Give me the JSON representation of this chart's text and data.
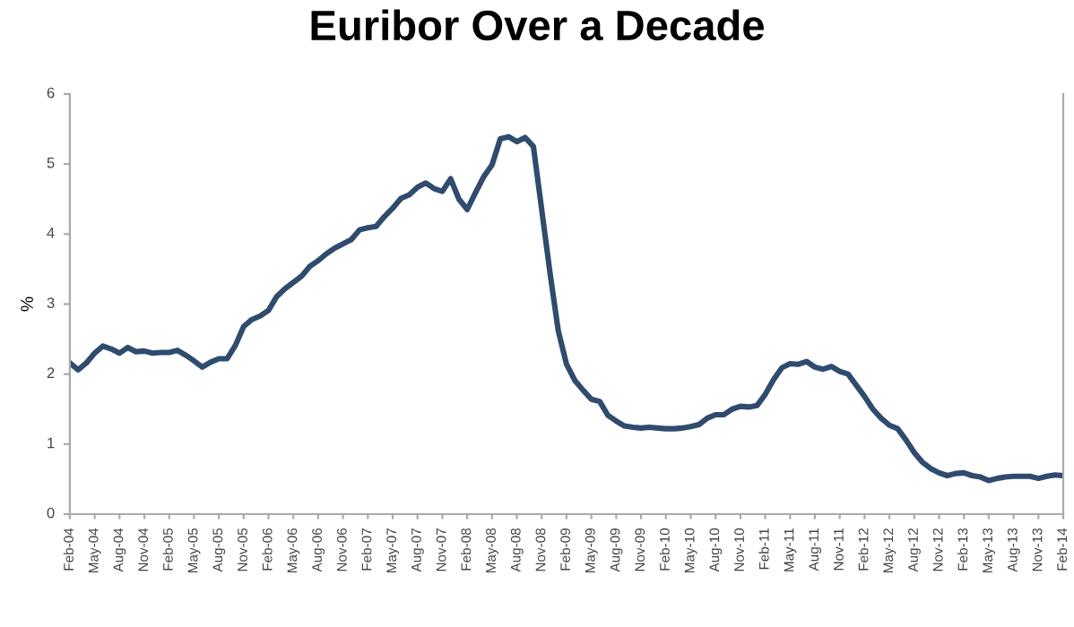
{
  "chart_data": {
    "type": "line",
    "title": "Euribor Over a Decade",
    "ylabel": "%",
    "categories": [
      "Feb-04",
      null,
      null,
      "May-04",
      null,
      null,
      "Aug-04",
      null,
      null,
      "Nov-04",
      null,
      null,
      "Feb-05",
      null,
      null,
      "May-05",
      null,
      null,
      "Aug-05",
      null,
      null,
      "Nov-05",
      null,
      null,
      "Feb-06",
      null,
      null,
      "May-06",
      null,
      null,
      "Aug-06",
      null,
      null,
      "Nov-06",
      null,
      null,
      "Feb-07",
      null,
      null,
      "May-07",
      null,
      null,
      "Aug-07",
      null,
      null,
      "Nov-07",
      null,
      null,
      "Feb-08",
      null,
      null,
      "May-08",
      null,
      null,
      "Aug-08",
      null,
      null,
      "Nov-08",
      null,
      null,
      "Feb-09",
      null,
      null,
      "May-09",
      null,
      null,
      "Aug-09",
      null,
      null,
      "Nov-09",
      null,
      null,
      "Feb-10",
      null,
      null,
      "May-10",
      null,
      null,
      "Aug-10",
      null,
      null,
      "Nov-10",
      null,
      null,
      "Feb-11",
      null,
      null,
      "May-11",
      null,
      null,
      "Aug-11",
      null,
      null,
      "Nov-11",
      null,
      null,
      "Feb-12",
      null,
      null,
      "May-12",
      null,
      null,
      "Aug-12",
      null,
      null,
      "Nov-12",
      null,
      null,
      "Feb-13",
      null,
      null,
      "May-13",
      null,
      null,
      "Aug-13",
      null,
      null,
      "Nov-13",
      null,
      null,
      "Feb-14"
    ],
    "series": [
      {
        "color": "#2f4b6e",
        "values": [
          2.16,
          2.06,
          2.16,
          2.3,
          2.4,
          2.36,
          2.3,
          2.38,
          2.32,
          2.33,
          2.3,
          2.31,
          2.31,
          2.34,
          2.27,
          2.19,
          2.1,
          2.17,
          2.22,
          2.22,
          2.41,
          2.68,
          2.78,
          2.83,
          2.91,
          3.11,
          3.22,
          3.31,
          3.4,
          3.54,
          3.62,
          3.72,
          3.8,
          3.86,
          3.92,
          4.06,
          4.09,
          4.11,
          4.25,
          4.37,
          4.51,
          4.56,
          4.67,
          4.73,
          4.65,
          4.61,
          4.79,
          4.5,
          4.35,
          4.59,
          4.82,
          4.99,
          5.36,
          5.39,
          5.32,
          5.38,
          5.25,
          4.35,
          3.45,
          2.62,
          2.14,
          1.91,
          1.77,
          1.64,
          1.61,
          1.41,
          1.33,
          1.26,
          1.24,
          1.23,
          1.24,
          1.23,
          1.22,
          1.22,
          1.23,
          1.25,
          1.28,
          1.37,
          1.42,
          1.42,
          1.5,
          1.54,
          1.53,
          1.55,
          1.71,
          1.92,
          2.09,
          2.15,
          2.14,
          2.18,
          2.1,
          2.07,
          2.11,
          2.04,
          2.0,
          1.84,
          1.68,
          1.5,
          1.37,
          1.27,
          1.22,
          1.06,
          0.88,
          0.74,
          0.65,
          0.59,
          0.55,
          0.58,
          0.59,
          0.55,
          0.53,
          0.48,
          0.51,
          0.53,
          0.54,
          0.54,
          0.54,
          0.51,
          0.54,
          0.56,
          0.55
        ]
      }
    ],
    "ylim": [
      0,
      6
    ],
    "yticks": [
      0,
      1,
      2,
      3,
      4,
      5,
      6
    ],
    "grid": false,
    "marker": "none",
    "line_style": "solid"
  }
}
